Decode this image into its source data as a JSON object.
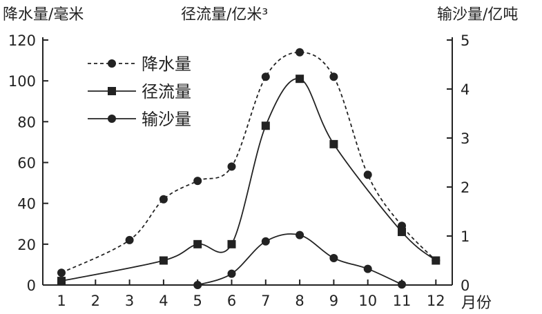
{
  "chart_data": {
    "type": "line",
    "left_axis_label": "降水量/毫米",
    "middle_axis_label": "径流量/亿米³",
    "right_axis_label": "输沙量/亿吨",
    "xlabel": "月份",
    "x": [
      1,
      2,
      3,
      4,
      5,
      6,
      7,
      8,
      9,
      10,
      11,
      12
    ],
    "x_tick_labels": [
      "1",
      "2",
      "3",
      "4",
      "5",
      "6",
      "7",
      "8",
      "9",
      "10",
      "11",
      "12"
    ],
    "left_ylim": [
      0,
      120
    ],
    "left_ticks": [
      0,
      20,
      40,
      60,
      80,
      100,
      120
    ],
    "right_ylim": [
      0,
      5
    ],
    "right_ticks": [
      0,
      1,
      2,
      3,
      4,
      5
    ],
    "grid": false,
    "legend_placement": "top-left",
    "series": [
      {
        "name": "降水量",
        "axis": "left",
        "style": "dashed",
        "marker": "circle",
        "x": [
          1,
          3,
          4,
          5,
          6,
          7,
          8,
          9,
          10,
          11,
          12
        ],
        "values": [
          6,
          22,
          42,
          51,
          58,
          102,
          114,
          102,
          54,
          29,
          12
        ]
      },
      {
        "name": "径流量",
        "axis": "left",
        "style": "solid",
        "marker": "square",
        "x": [
          1,
          4,
          5,
          6,
          7,
          8,
          9,
          11,
          12
        ],
        "values": [
          2,
          12,
          20,
          20,
          78,
          101,
          69,
          26,
          12
        ]
      },
      {
        "name": "输沙量",
        "axis": "right",
        "style": "solid",
        "marker": "circle",
        "x": [
          5,
          6,
          7,
          8,
          9,
          10,
          11
        ],
        "values": [
          0,
          0.23,
          0.89,
          1.02,
          0.55,
          0.33,
          0.01
        ]
      }
    ]
  }
}
